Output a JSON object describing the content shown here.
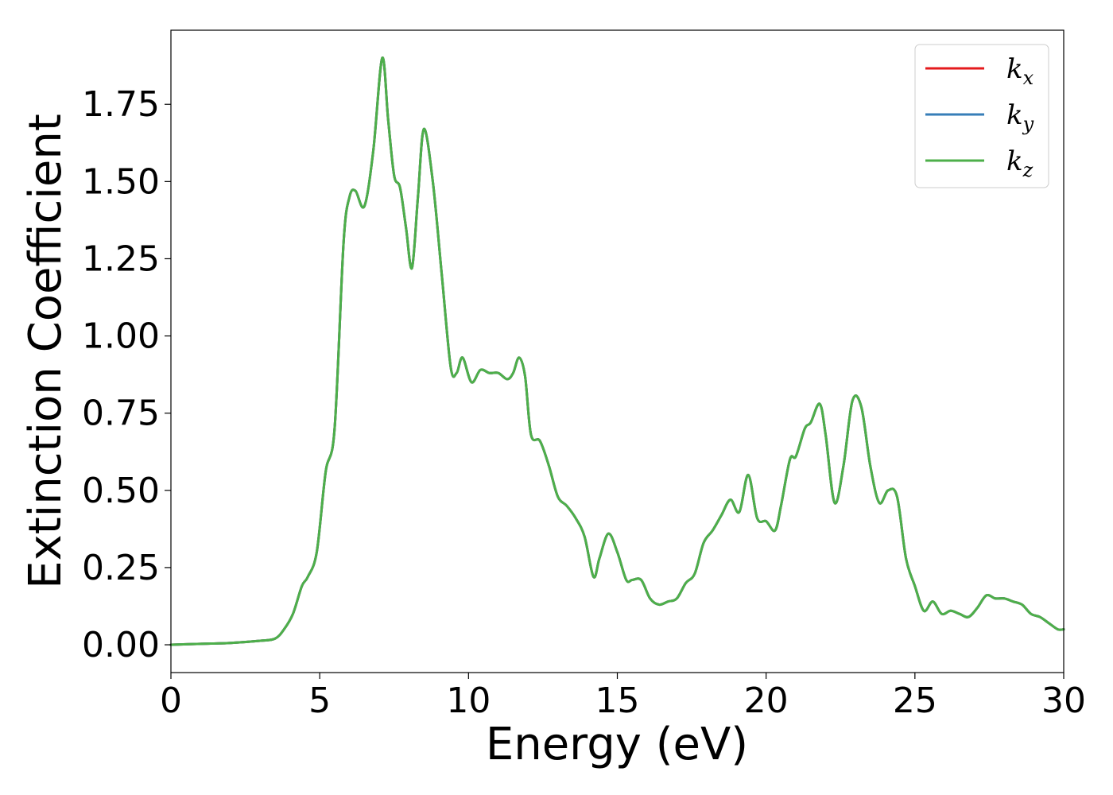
{
  "chart_data": {
    "type": "line",
    "xlabel": "Energy (eV)",
    "ylabel": "Extinction Coefficient",
    "xlim": [
      0,
      30
    ],
    "ylim": [
      -0.09,
      1.99
    ],
    "xticks": [
      0,
      5,
      10,
      15,
      20,
      25,
      30
    ],
    "xtick_labels": [
      "0",
      "5",
      "10",
      "15",
      "20",
      "25",
      "30"
    ],
    "yticks": [
      0.0,
      0.25,
      0.5,
      0.75,
      1.0,
      1.25,
      1.5,
      1.75
    ],
    "ytick_labels": [
      "0.00",
      "0.25",
      "0.50",
      "0.75",
      "1.00",
      "1.25",
      "1.50",
      "1.75"
    ],
    "grid": false,
    "legend_position": "top-right",
    "x": [
      0,
      1,
      2,
      3,
      3.5,
      3.8,
      4.1,
      4.4,
      4.6,
      4.9,
      5.2,
      5.5,
      5.8,
      6.0,
      6.2,
      6.5,
      6.8,
      7.1,
      7.3,
      7.5,
      7.7,
      7.9,
      8.1,
      8.3,
      8.5,
      8.8,
      9.1,
      9.4,
      9.6,
      9.8,
      10.1,
      10.4,
      10.7,
      11.0,
      11.3,
      11.5,
      11.7,
      11.9,
      12.1,
      12.4,
      12.7,
      13.0,
      13.3,
      13.6,
      13.9,
      14.2,
      14.4,
      14.7,
      15.0,
      15.3,
      15.5,
      15.8,
      16.1,
      16.4,
      16.7,
      17.0,
      17.3,
      17.6,
      17.9,
      18.2,
      18.5,
      18.8,
      19.1,
      19.4,
      19.7,
      20.0,
      20.3,
      20.5,
      20.8,
      21.0,
      21.3,
      21.5,
      21.8,
      22.0,
      22.3,
      22.6,
      22.9,
      23.2,
      23.5,
      23.8,
      24.1,
      24.4,
      24.7,
      25.0,
      25.3,
      25.6,
      25.9,
      26.2,
      26.5,
      26.8,
      27.1,
      27.4,
      27.7,
      28.0,
      28.3,
      28.6,
      28.9,
      29.2,
      29.5,
      29.8,
      30.0
    ],
    "series": [
      {
        "name": "k_x",
        "color": "#e41a1c",
        "y": [
          0.0,
          0.003,
          0.006,
          0.013,
          0.02,
          0.05,
          0.1,
          0.19,
          0.22,
          0.3,
          0.56,
          0.7,
          1.3,
          1.45,
          1.47,
          1.42,
          1.6,
          1.9,
          1.7,
          1.52,
          1.48,
          1.35,
          1.22,
          1.45,
          1.67,
          1.5,
          1.2,
          0.9,
          0.88,
          0.93,
          0.85,
          0.89,
          0.88,
          0.88,
          0.86,
          0.88,
          0.93,
          0.87,
          0.68,
          0.66,
          0.58,
          0.48,
          0.45,
          0.41,
          0.35,
          0.22,
          0.28,
          0.36,
          0.3,
          0.21,
          0.21,
          0.21,
          0.15,
          0.13,
          0.14,
          0.15,
          0.2,
          0.23,
          0.33,
          0.37,
          0.42,
          0.47,
          0.43,
          0.55,
          0.41,
          0.4,
          0.37,
          0.45,
          0.6,
          0.61,
          0.7,
          0.72,
          0.78,
          0.68,
          0.46,
          0.58,
          0.79,
          0.77,
          0.58,
          0.46,
          0.5,
          0.48,
          0.28,
          0.19,
          0.11,
          0.14,
          0.1,
          0.11,
          0.1,
          0.09,
          0.12,
          0.16,
          0.15,
          0.15,
          0.14,
          0.13,
          0.1,
          0.09,
          0.07,
          0.05,
          0.05
        ]
      },
      {
        "name": "k_y",
        "color": "#377eb8",
        "y": [
          0.0,
          0.003,
          0.006,
          0.013,
          0.02,
          0.05,
          0.1,
          0.19,
          0.22,
          0.3,
          0.56,
          0.7,
          1.3,
          1.45,
          1.47,
          1.42,
          1.6,
          1.9,
          1.7,
          1.52,
          1.48,
          1.35,
          1.22,
          1.45,
          1.67,
          1.5,
          1.2,
          0.9,
          0.88,
          0.93,
          0.85,
          0.89,
          0.88,
          0.88,
          0.86,
          0.88,
          0.93,
          0.87,
          0.68,
          0.66,
          0.58,
          0.48,
          0.45,
          0.41,
          0.35,
          0.22,
          0.28,
          0.36,
          0.3,
          0.21,
          0.21,
          0.21,
          0.15,
          0.13,
          0.14,
          0.15,
          0.2,
          0.23,
          0.33,
          0.37,
          0.42,
          0.47,
          0.43,
          0.55,
          0.41,
          0.4,
          0.37,
          0.45,
          0.6,
          0.61,
          0.7,
          0.72,
          0.78,
          0.68,
          0.46,
          0.58,
          0.79,
          0.77,
          0.58,
          0.46,
          0.5,
          0.48,
          0.28,
          0.19,
          0.11,
          0.14,
          0.1,
          0.11,
          0.1,
          0.09,
          0.12,
          0.16,
          0.15,
          0.15,
          0.14,
          0.13,
          0.1,
          0.09,
          0.07,
          0.05,
          0.05
        ]
      },
      {
        "name": "k_z",
        "color": "#4daf4a",
        "y": [
          0.0,
          0.003,
          0.006,
          0.013,
          0.02,
          0.05,
          0.1,
          0.19,
          0.22,
          0.3,
          0.56,
          0.7,
          1.3,
          1.45,
          1.47,
          1.42,
          1.6,
          1.9,
          1.7,
          1.52,
          1.48,
          1.35,
          1.22,
          1.45,
          1.67,
          1.5,
          1.2,
          0.9,
          0.88,
          0.93,
          0.85,
          0.89,
          0.88,
          0.88,
          0.86,
          0.88,
          0.93,
          0.87,
          0.68,
          0.66,
          0.58,
          0.48,
          0.45,
          0.41,
          0.35,
          0.22,
          0.28,
          0.36,
          0.3,
          0.21,
          0.21,
          0.21,
          0.15,
          0.13,
          0.14,
          0.15,
          0.2,
          0.23,
          0.33,
          0.37,
          0.42,
          0.47,
          0.43,
          0.55,
          0.41,
          0.4,
          0.37,
          0.45,
          0.6,
          0.61,
          0.7,
          0.72,
          0.78,
          0.68,
          0.46,
          0.58,
          0.79,
          0.77,
          0.58,
          0.46,
          0.5,
          0.48,
          0.28,
          0.19,
          0.11,
          0.14,
          0.1,
          0.11,
          0.1,
          0.09,
          0.12,
          0.16,
          0.15,
          0.15,
          0.14,
          0.13,
          0.1,
          0.09,
          0.07,
          0.05,
          0.05
        ]
      }
    ],
    "legend": [
      {
        "base": "k",
        "sub": "x",
        "color": "#e41a1c"
      },
      {
        "base": "k",
        "sub": "y",
        "color": "#377eb8"
      },
      {
        "base": "k",
        "sub": "z",
        "color": "#4daf4a"
      }
    ]
  }
}
